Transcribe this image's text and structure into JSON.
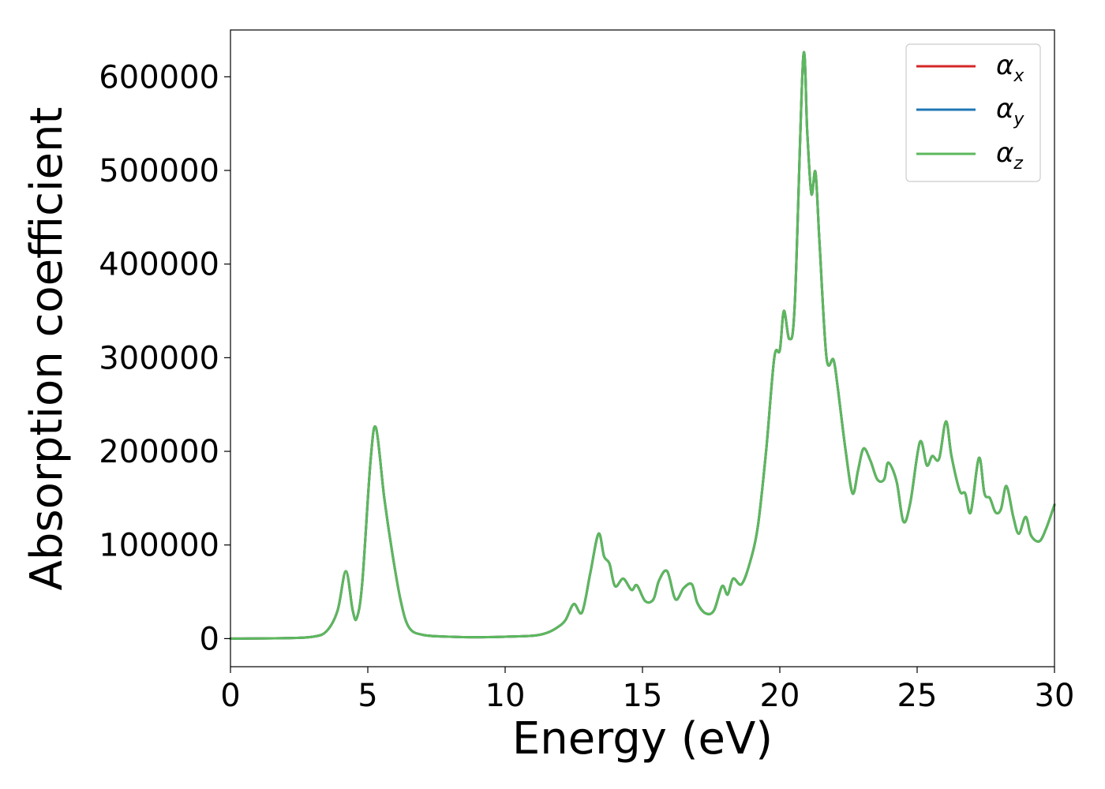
{
  "chart_data": {
    "type": "line",
    "xlabel": "Energy (eV)",
    "ylabel": "Absorption coefficient",
    "xlim": [
      0,
      30
    ],
    "ylim": [
      -30000,
      650000
    ],
    "xticks": [
      0,
      5,
      10,
      15,
      20,
      25,
      30
    ],
    "yticks": [
      0,
      100000,
      200000,
      300000,
      400000,
      500000,
      600000
    ],
    "grid": false,
    "legend_position": "top-right",
    "series": [
      {
        "name": "α_x",
        "legend_symbol": "α",
        "legend_subscript": "x",
        "color": "#d62728",
        "x": [
          0,
          2,
          3,
          3.5,
          3.9,
          4.2,
          4.45,
          4.6,
          4.8,
          5.1,
          5.3,
          5.6,
          5.9,
          6.2,
          6.5,
          7,
          8,
          9,
          10,
          11,
          11.5,
          11.9,
          12.2,
          12.5,
          12.8,
          13.1,
          13.4,
          13.6,
          13.8,
          14.0,
          14.3,
          14.6,
          14.8,
          15.1,
          15.4,
          15.6,
          15.9,
          16.2,
          16.5,
          16.8,
          17.0,
          17.3,
          17.6,
          17.9,
          18.1,
          18.3,
          18.6,
          18.9,
          19.2,
          19.5,
          19.8,
          20.0,
          20.15,
          20.35,
          20.55,
          20.85,
          21.0,
          21.15,
          21.3,
          21.45,
          21.7,
          21.95,
          22.1,
          22.4,
          22.65,
          22.85,
          23.05,
          23.3,
          23.55,
          23.8,
          23.95,
          24.25,
          24.5,
          24.75,
          25.1,
          25.35,
          25.55,
          25.8,
          26.05,
          26.25,
          26.55,
          26.75,
          26.95,
          27.25,
          27.45,
          27.65,
          27.85,
          28.05,
          28.25,
          28.5,
          28.7,
          28.95,
          29.15,
          29.45,
          29.7,
          30
        ],
        "y": [
          0,
          500,
          2000,
          8000,
          30000,
          72000,
          30000,
          22000,
          60000,
          190000,
          225000,
          150000,
          90000,
          40000,
          12000,
          4000,
          2000,
          1500,
          2000,
          3000,
          6000,
          12000,
          20000,
          37000,
          28000,
          70000,
          112000,
          88000,
          80000,
          56000,
          64000,
          52000,
          57000,
          40000,
          42000,
          62000,
          72000,
          42000,
          54000,
          58000,
          38000,
          27000,
          30000,
          56000,
          47000,
          64000,
          58000,
          80000,
          120000,
          200000,
          300000,
          308000,
          350000,
          320000,
          360000,
          620000,
          540000,
          475000,
          498000,
          420000,
          300000,
          298000,
          270000,
          200000,
          155000,
          180000,
          203000,
          190000,
          170000,
          170000,
          188000,
          168000,
          125000,
          145000,
          210000,
          185000,
          195000,
          192000,
          232000,
          195000,
          158000,
          155000,
          135000,
          193000,
          155000,
          150000,
          135000,
          138000,
          163000,
          130000,
          112000,
          130000,
          110000,
          104000,
          118000,
          143000
        ]
      },
      {
        "name": "α_y",
        "legend_symbol": "α",
        "legend_subscript": "y",
        "color": "#1f77b4",
        "x": [
          0,
          2,
          3,
          3.5,
          3.9,
          4.2,
          4.45,
          4.6,
          4.8,
          5.1,
          5.3,
          5.6,
          5.9,
          6.2,
          6.5,
          7,
          8,
          9,
          10,
          11,
          11.5,
          11.9,
          12.2,
          12.5,
          12.8,
          13.1,
          13.4,
          13.6,
          13.8,
          14.0,
          14.3,
          14.6,
          14.8,
          15.1,
          15.4,
          15.6,
          15.9,
          16.2,
          16.5,
          16.8,
          17.0,
          17.3,
          17.6,
          17.9,
          18.1,
          18.3,
          18.6,
          18.9,
          19.2,
          19.5,
          19.8,
          20.0,
          20.15,
          20.35,
          20.55,
          20.85,
          21.0,
          21.15,
          21.3,
          21.45,
          21.7,
          21.95,
          22.1,
          22.4,
          22.65,
          22.85,
          23.05,
          23.3,
          23.55,
          23.8,
          23.95,
          24.25,
          24.5,
          24.75,
          25.1,
          25.35,
          25.55,
          25.8,
          26.05,
          26.25,
          26.55,
          26.75,
          26.95,
          27.25,
          27.45,
          27.65,
          27.85,
          28.05,
          28.25,
          28.5,
          28.7,
          28.95,
          29.15,
          29.45,
          29.7,
          30
        ],
        "y": [
          0,
          500,
          2000,
          8000,
          30000,
          72000,
          30000,
          22000,
          60000,
          190000,
          225000,
          150000,
          90000,
          40000,
          12000,
          4000,
          2000,
          1500,
          2000,
          3000,
          6000,
          12000,
          20000,
          37000,
          28000,
          70000,
          112000,
          88000,
          80000,
          56000,
          64000,
          52000,
          57000,
          40000,
          42000,
          62000,
          72000,
          42000,
          54000,
          58000,
          38000,
          27000,
          30000,
          56000,
          47000,
          64000,
          58000,
          80000,
          120000,
          200000,
          300000,
          308000,
          350000,
          320000,
          360000,
          620000,
          540000,
          475000,
          498000,
          420000,
          300000,
          298000,
          270000,
          200000,
          155000,
          180000,
          203000,
          190000,
          170000,
          170000,
          188000,
          168000,
          125000,
          145000,
          210000,
          185000,
          195000,
          192000,
          232000,
          195000,
          158000,
          155000,
          135000,
          193000,
          155000,
          150000,
          135000,
          138000,
          163000,
          130000,
          112000,
          130000,
          110000,
          104000,
          118000,
          143000
        ]
      },
      {
        "name": "α_z",
        "legend_symbol": "α",
        "legend_subscript": "z",
        "color": "#5cb85c",
        "x": [
          0,
          2,
          3,
          3.5,
          3.9,
          4.2,
          4.45,
          4.6,
          4.8,
          5.1,
          5.3,
          5.6,
          5.9,
          6.2,
          6.5,
          7,
          8,
          9,
          10,
          11,
          11.5,
          11.9,
          12.2,
          12.5,
          12.8,
          13.1,
          13.4,
          13.6,
          13.8,
          14.0,
          14.3,
          14.6,
          14.8,
          15.1,
          15.4,
          15.6,
          15.9,
          16.2,
          16.5,
          16.8,
          17.0,
          17.3,
          17.6,
          17.9,
          18.1,
          18.3,
          18.6,
          18.9,
          19.2,
          19.5,
          19.8,
          20.0,
          20.15,
          20.35,
          20.55,
          20.85,
          21.0,
          21.15,
          21.3,
          21.45,
          21.7,
          21.95,
          22.1,
          22.4,
          22.65,
          22.85,
          23.05,
          23.3,
          23.55,
          23.8,
          23.95,
          24.25,
          24.5,
          24.75,
          25.1,
          25.35,
          25.55,
          25.8,
          26.05,
          26.25,
          26.55,
          26.75,
          26.95,
          27.25,
          27.45,
          27.65,
          27.85,
          28.05,
          28.25,
          28.5,
          28.7,
          28.95,
          29.15,
          29.45,
          29.7,
          30
        ],
        "y": [
          0,
          500,
          2000,
          8000,
          30000,
          72000,
          30000,
          22000,
          60000,
          190000,
          225000,
          150000,
          90000,
          40000,
          12000,
          4000,
          2000,
          1500,
          2000,
          3000,
          6000,
          12000,
          20000,
          37000,
          28000,
          70000,
          112000,
          88000,
          80000,
          56000,
          64000,
          52000,
          57000,
          40000,
          42000,
          62000,
          72000,
          42000,
          54000,
          58000,
          38000,
          27000,
          30000,
          56000,
          47000,
          64000,
          58000,
          80000,
          120000,
          200000,
          300000,
          308000,
          350000,
          320000,
          360000,
          620000,
          540000,
          475000,
          498000,
          420000,
          300000,
          298000,
          270000,
          200000,
          155000,
          180000,
          203000,
          190000,
          170000,
          170000,
          188000,
          168000,
          125000,
          145000,
          210000,
          185000,
          195000,
          192000,
          232000,
          195000,
          158000,
          155000,
          135000,
          193000,
          155000,
          150000,
          135000,
          138000,
          163000,
          130000,
          112000,
          130000,
          110000,
          104000,
          118000,
          143000
        ]
      }
    ]
  }
}
